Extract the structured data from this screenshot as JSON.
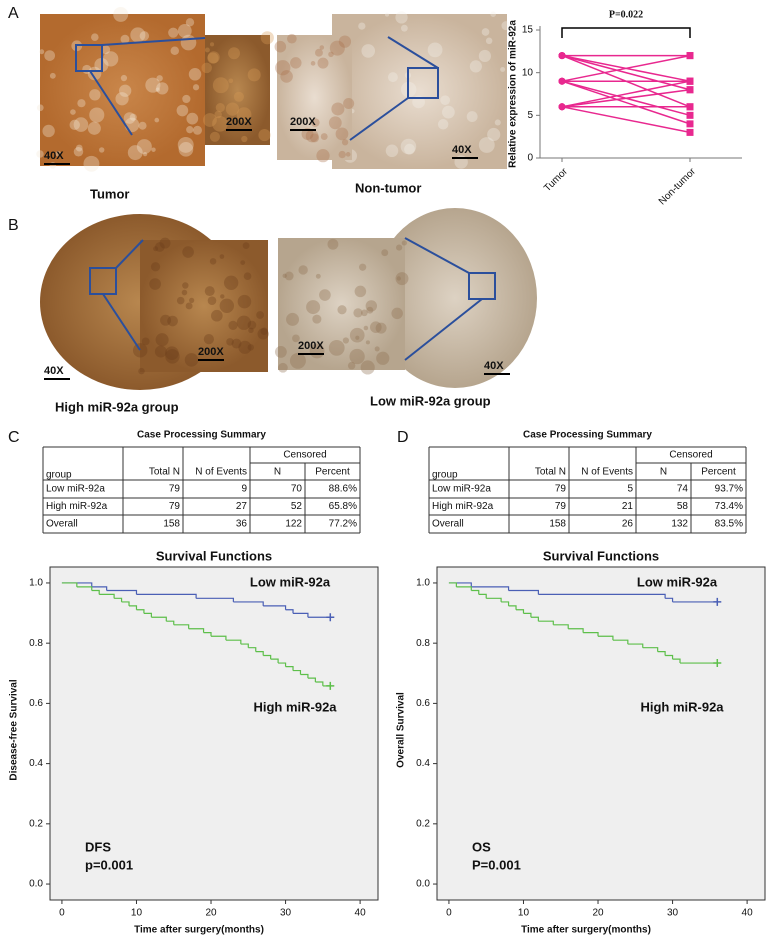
{
  "panel_labels": [
    "A",
    "B",
    "C",
    "D"
  ],
  "panel_a": {
    "magnifications": [
      "40X",
      "200X",
      "200X",
      "40X"
    ],
    "captions": [
      "Tumor",
      "Non-tumor"
    ]
  },
  "panel_b": {
    "magnifications": [
      "40X",
      "200X",
      "200X",
      "40X"
    ],
    "captions": [
      "High miR-92a group",
      "Low miR-92a group"
    ]
  },
  "tables": [
    {
      "title": "Case Processing Summary",
      "group_header": "Censored",
      "columns": [
        "group",
        "Total N",
        "N of Events",
        "N",
        "Percent"
      ],
      "rows": [
        [
          "Low miR-92a",
          "79",
          "9",
          "70",
          "88.6%"
        ],
        [
          "High miR-92a",
          "79",
          "27",
          "52",
          "65.8%"
        ],
        [
          "Overall",
          "158",
          "36",
          "122",
          "77.2%"
        ]
      ]
    },
    {
      "title": "Case Processing Summary",
      "group_header": "Censored",
      "columns": [
        "group",
        "Total N",
        "N of Events",
        "N",
        "Percent"
      ],
      "rows": [
        [
          "Low miR-92a",
          "79",
          "5",
          "74",
          "93.7%"
        ],
        [
          "High miR-92a",
          "79",
          "21",
          "58",
          "73.4%"
        ],
        [
          "Overall",
          "158",
          "26",
          "132",
          "83.5%"
        ]
      ]
    }
  ],
  "chart_data": [
    {
      "type": "paired",
      "ylabel": "Relative expression of miR-92a",
      "categories": [
        "Tumor",
        "Non-tumor"
      ],
      "ylim": [
        0,
        15
      ],
      "yticks": [
        0,
        5,
        10,
        15
      ],
      "color": "#e8288f",
      "annotation": "P=0.022",
      "pairs": [
        [
          12,
          12
        ],
        [
          12,
          9
        ],
        [
          12,
          6
        ],
        [
          12,
          8
        ],
        [
          9,
          12
        ],
        [
          9,
          9
        ],
        [
          9,
          5
        ],
        [
          9,
          4
        ],
        [
          6,
          9
        ],
        [
          6,
          8
        ],
        [
          6,
          3
        ],
        [
          6,
          6
        ]
      ]
    },
    {
      "type": "km",
      "title": "Survival Functions",
      "xlabel": "Time after surgery(months)",
      "ylabel": "Disease-free Survival",
      "xlim": [
        -1.6,
        42.4
      ],
      "ylim": [
        -0.053,
        1.053
      ],
      "xticks": [
        0,
        10,
        20,
        30,
        40
      ],
      "yticks": [
        {
          "value": 0,
          "label": "0.0"
        },
        {
          "value": 0.2,
          "label": "0.2"
        },
        {
          "value": 0.4,
          "label": "0.4"
        },
        {
          "value": 0.6,
          "label": "0.6"
        },
        {
          "value": 0.8,
          "label": "0.8"
        },
        {
          "value": 1,
          "label": "1.0"
        }
      ],
      "annotations": [
        "DFS",
        "p=0.001"
      ],
      "series": [
        {
          "name": "Low miR-92a",
          "color": "#4a5fb5",
          "x": [
            0,
            4,
            6,
            10,
            18,
            23,
            27,
            30,
            31,
            33,
            36
          ],
          "values": [
            1,
            0.987,
            0.975,
            0.962,
            0.949,
            0.937,
            0.924,
            0.911,
            0.899,
            0.886,
            0.886
          ]
        },
        {
          "name": "High miR-92a",
          "color": "#5dbf4a",
          "x": [
            0,
            2,
            4,
            5,
            7,
            8,
            9,
            10,
            11,
            12,
            14,
            15,
            17,
            19,
            20,
            22,
            24,
            25,
            26,
            27,
            28,
            29,
            30,
            31,
            32,
            33,
            34,
            35,
            36
          ],
          "values": [
            1,
            0.987,
            0.975,
            0.962,
            0.949,
            0.937,
            0.924,
            0.911,
            0.899,
            0.886,
            0.873,
            0.861,
            0.848,
            0.835,
            0.823,
            0.81,
            0.797,
            0.785,
            0.772,
            0.759,
            0.747,
            0.734,
            0.722,
            0.709,
            0.696,
            0.684,
            0.671,
            0.658,
            0.658
          ]
        }
      ]
    },
    {
      "type": "km",
      "title": "Survival Functions",
      "xlabel": "Time after surgery(months)",
      "ylabel": "Overall Survival",
      "xlim": [
        -1.6,
        42.4
      ],
      "ylim": [
        -0.053,
        1.053
      ],
      "xticks": [
        0,
        10,
        20,
        30,
        40
      ],
      "yticks": [
        {
          "value": 0,
          "label": "0.0"
        },
        {
          "value": 0.2,
          "label": "0.2"
        },
        {
          "value": 0.4,
          "label": "0.4"
        },
        {
          "value": 0.6,
          "label": "0.6"
        },
        {
          "value": 0.8,
          "label": "0.8"
        },
        {
          "value": 1,
          "label": "1.0"
        }
      ],
      "annotations": [
        "OS",
        "P=0.001"
      ],
      "series": [
        {
          "name": "Low miR-92a",
          "color": "#4a5fb5",
          "x": [
            0,
            3,
            8,
            12,
            29,
            30,
            36
          ],
          "values": [
            1,
            0.987,
            0.975,
            0.962,
            0.949,
            0.937,
            0.937
          ]
        },
        {
          "name": "High miR-92a",
          "color": "#5dbf4a",
          "x": [
            0,
            1,
            3,
            4,
            5,
            7,
            8,
            9,
            10,
            11,
            12,
            14,
            16,
            18,
            20,
            22,
            24,
            26,
            28,
            29,
            30,
            31,
            36
          ],
          "values": [
            1,
            0.987,
            0.975,
            0.962,
            0.949,
            0.937,
            0.924,
            0.911,
            0.899,
            0.886,
            0.873,
            0.861,
            0.848,
            0.835,
            0.823,
            0.81,
            0.797,
            0.785,
            0.772,
            0.759,
            0.747,
            0.734,
            0.734
          ]
        }
      ]
    }
  ]
}
